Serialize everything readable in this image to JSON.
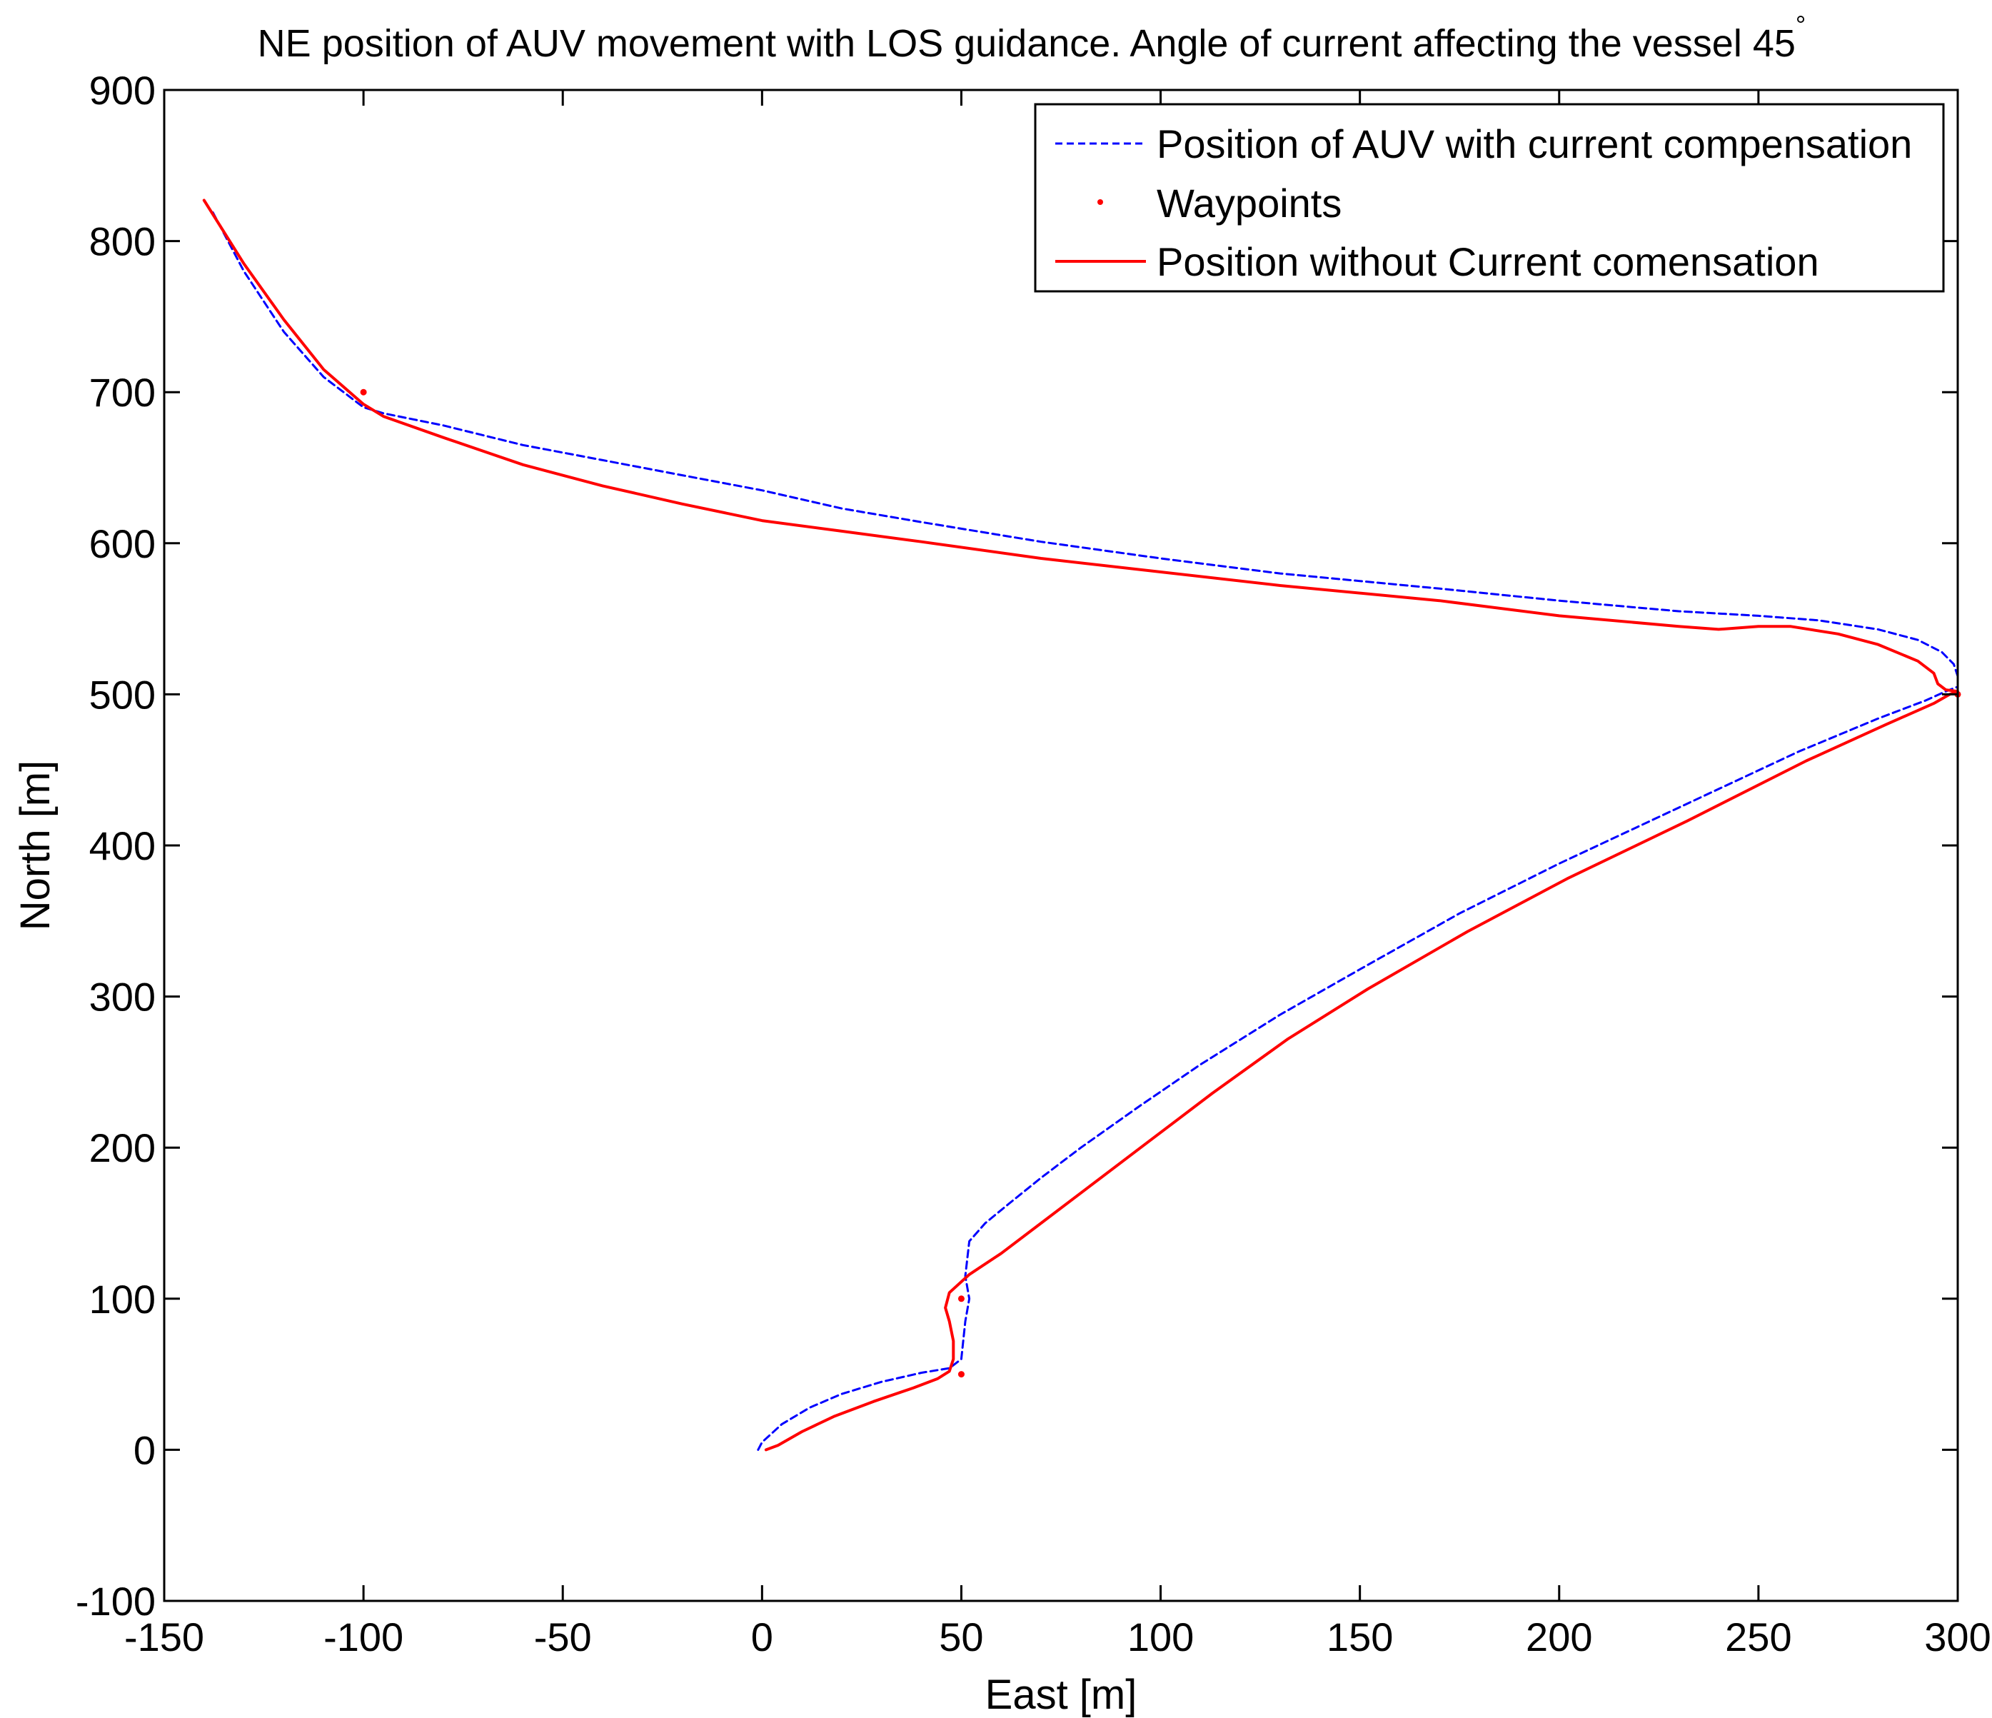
{
  "chart_data": {
    "type": "line",
    "title": "NE position of AUV movement with LOS guidance. Angle of current affecting the vessel 45",
    "title_superscript": "°",
    "xlabel": "East [m]",
    "ylabel": "North [m]",
    "xlim": [
      -150,
      300
    ],
    "ylim": [
      -100,
      900
    ],
    "xticks": [
      -150,
      -100,
      -50,
      0,
      50,
      100,
      150,
      200,
      250,
      300
    ],
    "yticks": [
      -100,
      0,
      100,
      200,
      300,
      400,
      500,
      600,
      700,
      800,
      900
    ],
    "grid": false,
    "legend_position": "top-right",
    "series": [
      {
        "name": "Position of AUV with current compensation",
        "color": "#0000ff",
        "style": "dashed",
        "x": [
          -1,
          0,
          5,
          12,
          20,
          30,
          40,
          47,
          50,
          51,
          52,
          51,
          52,
          56,
          62,
          70,
          80,
          95,
          110,
          130,
          150,
          175,
          200,
          230,
          260,
          280,
          292,
          297,
          300,
          300,
          299,
          296,
          290,
          280,
          265,
          250,
          230,
          200,
          170,
          130,
          100,
          70,
          40,
          20,
          0,
          -20,
          -40,
          -60,
          -80,
          -95,
          -100,
          -110,
          -120,
          -130,
          -138
        ],
        "y": [
          0,
          5,
          17,
          28,
          37,
          45,
          51,
          54,
          60,
          85,
          100,
          115,
          138,
          150,
          163,
          180,
          200,
          228,
          255,
          288,
          318,
          355,
          388,
          425,
          462,
          484,
          496,
          502,
          505,
          512,
          520,
          528,
          536,
          543,
          549,
          552,
          555,
          562,
          570,
          580,
          590,
          601,
          614,
          623,
          635,
          645,
          655,
          665,
          678,
          686,
          690,
          710,
          740,
          780,
          820
        ]
      },
      {
        "name": "Waypoints",
        "color": "#ff0000",
        "style": "points",
        "x": [
          -100,
          50,
          50,
          300
        ],
        "y": [
          700,
          50,
          100,
          500
        ]
      },
      {
        "name": "Position without Current comensation",
        "color": "#ff0000",
        "style": "solid",
        "x": [
          1,
          4,
          10,
          18,
          28,
          38,
          44,
          47,
          48,
          48,
          47,
          46,
          47,
          52,
          60,
          70,
          82,
          97,
          113,
          132,
          152,
          177,
          202,
          232,
          262,
          282,
          294,
          298,
          300,
          297,
          295,
          294,
          290,
          280,
          270,
          258,
          250,
          240,
          230,
          200,
          170,
          130,
          100,
          70,
          40,
          20,
          0,
          -20,
          -40,
          -60,
          -80,
          -95,
          -100,
          -110,
          -120,
          -130,
          -140
        ],
        "y": [
          0,
          3,
          12,
          22,
          32,
          41,
          47,
          52,
          60,
          72,
          85,
          94,
          104,
          116,
          130,
          150,
          174,
          204,
          236,
          272,
          305,
          343,
          378,
          416,
          456,
          480,
          494,
          500,
          502,
          503,
          507,
          514,
          522,
          533,
          540,
          545,
          545,
          543,
          545,
          552,
          562,
          572,
          581,
          590,
          601,
          608,
          615,
          626,
          638,
          652,
          670,
          684,
          692,
          715,
          748,
          785,
          827
        ]
      }
    ]
  }
}
